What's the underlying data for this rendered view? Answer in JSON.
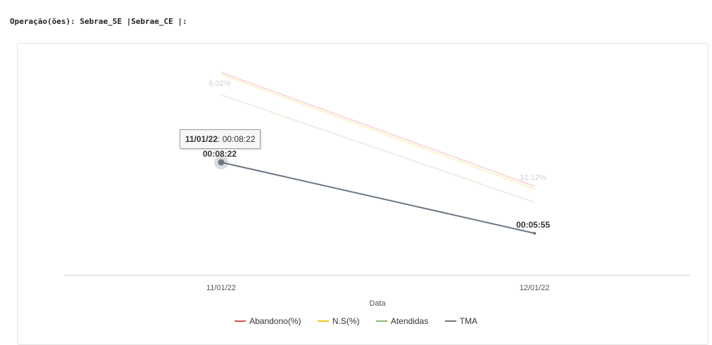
{
  "header": {
    "operations_label": "Operação(ões): Sebrae_SE |Sebrae_CE |:"
  },
  "tooltip": {
    "date": "11/01/22",
    "value": "00:08:22"
  },
  "colors": {
    "abandono": "#d9534f",
    "ns": "#f0c419",
    "atendidas": "#8bb872",
    "tma": "#6b7785",
    "axis": "#cccccc",
    "text": "#555555"
  },
  "chart_data": {
    "type": "line",
    "x": [
      "11/01/22",
      "12/01/22"
    ],
    "xlabel": "Data",
    "ylabel": "",
    "legend_position": "bottom",
    "series": [
      {
        "name": "Abandono(%)",
        "values": [
          null,
          null
        ],
        "muted": true
      },
      {
        "name": "N.S(%)",
        "values": [
          null,
          null
        ],
        "muted": true
      },
      {
        "name": "Atendidas",
        "values": [
          6.02,
          12.12
        ],
        "labels": [
          "6,02%",
          "12,12%"
        ],
        "muted": true
      },
      {
        "name": "TMA",
        "values": [
          "00:08:22",
          "00:05:55"
        ],
        "labels": [
          "00:08:22",
          "00:05:55"
        ],
        "muted": false
      }
    ]
  }
}
